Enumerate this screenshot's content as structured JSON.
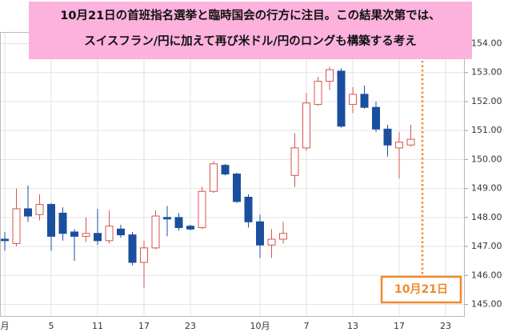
{
  "chart_data": {
    "type": "candlestick",
    "note_lines": [
      "10月21日の首班指名選挙と臨時国会の行方に注目。この結果次第では、",
      "スイスフラン/円に加えて再び米ドル/円のロングも構築する考え"
    ],
    "date_label": "10月21日",
    "categories": [
      "月",
      null,
      null,
      null,
      "5",
      null,
      null,
      null,
      "11",
      null,
      null,
      null,
      "17",
      null,
      null,
      null,
      "23",
      null,
      null,
      null,
      null,
      null,
      "10月",
      null,
      null,
      null,
      "7",
      null,
      null,
      null,
      "13",
      null,
      null,
      null,
      "17",
      null,
      null,
      null,
      "23"
    ],
    "open": [
      147.25,
      147.1,
      148.3,
      148.1,
      148.45,
      148.15,
      147.5,
      147.35,
      147.45,
      147.2,
      147.6,
      147.4,
      146.45,
      146.95,
      148.0,
      148.0,
      147.7,
      147.65,
      148.9,
      149.8,
      149.5,
      148.7,
      147.85,
      147.05,
      147.25,
      149.45,
      150.4,
      151.9,
      152.7,
      153.05,
      151.9,
      152.25,
      151.8,
      151.05,
      150.4,
      150.5,
      null,
      null,
      null
    ],
    "high": [
      147.5,
      149.0,
      149.1,
      148.8,
      148.5,
      148.35,
      147.6,
      148.0,
      148.3,
      148.25,
      147.75,
      147.5,
      147.2,
      148.25,
      148.4,
      148.15,
      147.75,
      149.05,
      149.95,
      149.85,
      149.55,
      148.8,
      148.1,
      147.6,
      147.85,
      150.9,
      152.3,
      152.85,
      153.2,
      153.15,
      152.5,
      152.55,
      152.0,
      151.2,
      150.95,
      151.2,
      null,
      null,
      null
    ],
    "low": [
      146.85,
      147.0,
      147.85,
      147.9,
      146.85,
      147.2,
      146.5,
      147.15,
      147.05,
      147.1,
      147.3,
      146.35,
      145.55,
      146.9,
      147.35,
      147.55,
      147.55,
      147.6,
      148.85,
      149.45,
      148.5,
      147.65,
      146.6,
      146.6,
      147.1,
      149.05,
      150.3,
      151.85,
      152.4,
      151.1,
      151.6,
      151.75,
      150.95,
      150.1,
      149.35,
      150.45,
      null,
      null,
      null
    ],
    "close": [
      147.2,
      148.3,
      148.05,
      148.45,
      147.35,
      147.45,
      147.35,
      147.45,
      147.2,
      147.7,
      147.4,
      146.45,
      146.95,
      148.05,
      147.95,
      147.65,
      147.6,
      148.9,
      149.85,
      149.5,
      148.55,
      147.85,
      147.05,
      147.25,
      147.45,
      150.4,
      151.95,
      152.7,
      153.1,
      151.15,
      152.25,
      151.8,
      151.05,
      150.5,
      150.6,
      150.7,
      null,
      null,
      null
    ],
    "up_color": "#d9534f",
    "down_color": "#1a4fa0",
    "ylim": [
      144.6,
      154.4
    ],
    "yticks": [
      {
        "value": 145,
        "label": "145.00"
      },
      {
        "value": 146,
        "label": "146.00"
      },
      {
        "value": 147,
        "label": "147.00"
      },
      {
        "value": 148,
        "label": "148.00"
      },
      {
        "value": 149,
        "label": "149.00"
      },
      {
        "value": 150,
        "label": "150.00"
      },
      {
        "value": 151,
        "label": "151.00"
      },
      {
        "value": 152,
        "label": "152.00"
      },
      {
        "value": 153,
        "label": "153.00"
      },
      {
        "value": 154,
        "label": "154.00"
      }
    ],
    "grid": true
  }
}
